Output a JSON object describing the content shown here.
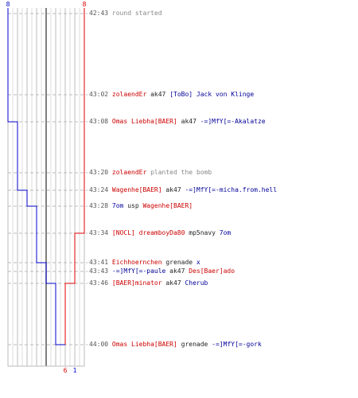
{
  "colors": {
    "team_blue": "#0000cc",
    "team_red": "#dd0000",
    "grid": "#bbbbbb",
    "dash": "#bbbbbb"
  },
  "chart_data": {
    "type": "line",
    "start_blue": "8",
    "start_red": "8",
    "end_blue": "1",
    "end_red": "6",
    "series": [
      {
        "values": [
          8,
          8,
          7,
          7,
          6,
          5,
          5,
          4,
          4,
          3,
          2,
          1
        ]
      },
      {
        "values": [
          8,
          8,
          8,
          8,
          8,
          8,
          7,
          7,
          7,
          6,
          6,
          6
        ]
      }
    ]
  },
  "events": [
    {
      "time": "42:43",
      "parts": [
        {
          "text": "round started",
          "c": "grey"
        }
      ]
    },
    {
      "time": "43:02",
      "parts": [
        {
          "text": "zolaendEr",
          "c": "red"
        },
        {
          "text": " ak47 ",
          "c": "blk"
        },
        {
          "text": "[ToBo] Jack von Klinge",
          "c": "blue"
        }
      ]
    },
    {
      "time": "43:08",
      "parts": [
        {
          "text": "Omas Liebha[BAER]",
          "c": "red"
        },
        {
          "text": " ak47 ",
          "c": "blk"
        },
        {
          "text": "-=]MfY[=-Akalatze",
          "c": "blue"
        }
      ]
    },
    {
      "time": "43:20",
      "parts": [
        {
          "text": "zolaendEr",
          "c": "red"
        },
        {
          "text": " planted the bomb",
          "c": "grey"
        }
      ]
    },
    {
      "time": "43:24",
      "parts": [
        {
          "text": "Wagenhe[BAER]",
          "c": "red"
        },
        {
          "text": " ak47 ",
          "c": "blk"
        },
        {
          "text": "-=]MfY[=-micha.from.hell",
          "c": "blue"
        }
      ]
    },
    {
      "time": "43:28",
      "parts": [
        {
          "text": "7om",
          "c": "blue"
        },
        {
          "text": " usp ",
          "c": "blk"
        },
        {
          "text": "Wagenhe[BAER]",
          "c": "red"
        }
      ]
    },
    {
      "time": "43:34",
      "parts": [
        {
          "text": "[NOCL] dreamboyDa80",
          "c": "red"
        },
        {
          "text": " mp5navy ",
          "c": "blk"
        },
        {
          "text": "7om",
          "c": "blue"
        }
      ]
    },
    {
      "time": "43:41",
      "parts": [
        {
          "text": "Eichhoernchen",
          "c": "red"
        },
        {
          "text": " grenade ",
          "c": "blk"
        },
        {
          "text": "x",
          "c": "blue"
        }
      ]
    },
    {
      "time": "43:43",
      "parts": [
        {
          "text": "-=]MfY[=-paule",
          "c": "blue"
        },
        {
          "text": " ak47 ",
          "c": "blk"
        },
        {
          "text": "Des[Baer]ado",
          "c": "red"
        }
      ]
    },
    {
      "time": "43:46",
      "parts": [
        {
          "text": "[BAER]minator",
          "c": "red"
        },
        {
          "text": " ak47 ",
          "c": "blk"
        },
        {
          "text": "Cherub",
          "c": "blue"
        }
      ]
    },
    {
      "time": "44:00",
      "parts": [
        {
          "text": "Omas Liebha[BAER]",
          "c": "red"
        },
        {
          "text": " grenade ",
          "c": "blk"
        },
        {
          "text": "-=]MfY[=-gork",
          "c": "blue"
        }
      ]
    }
  ]
}
